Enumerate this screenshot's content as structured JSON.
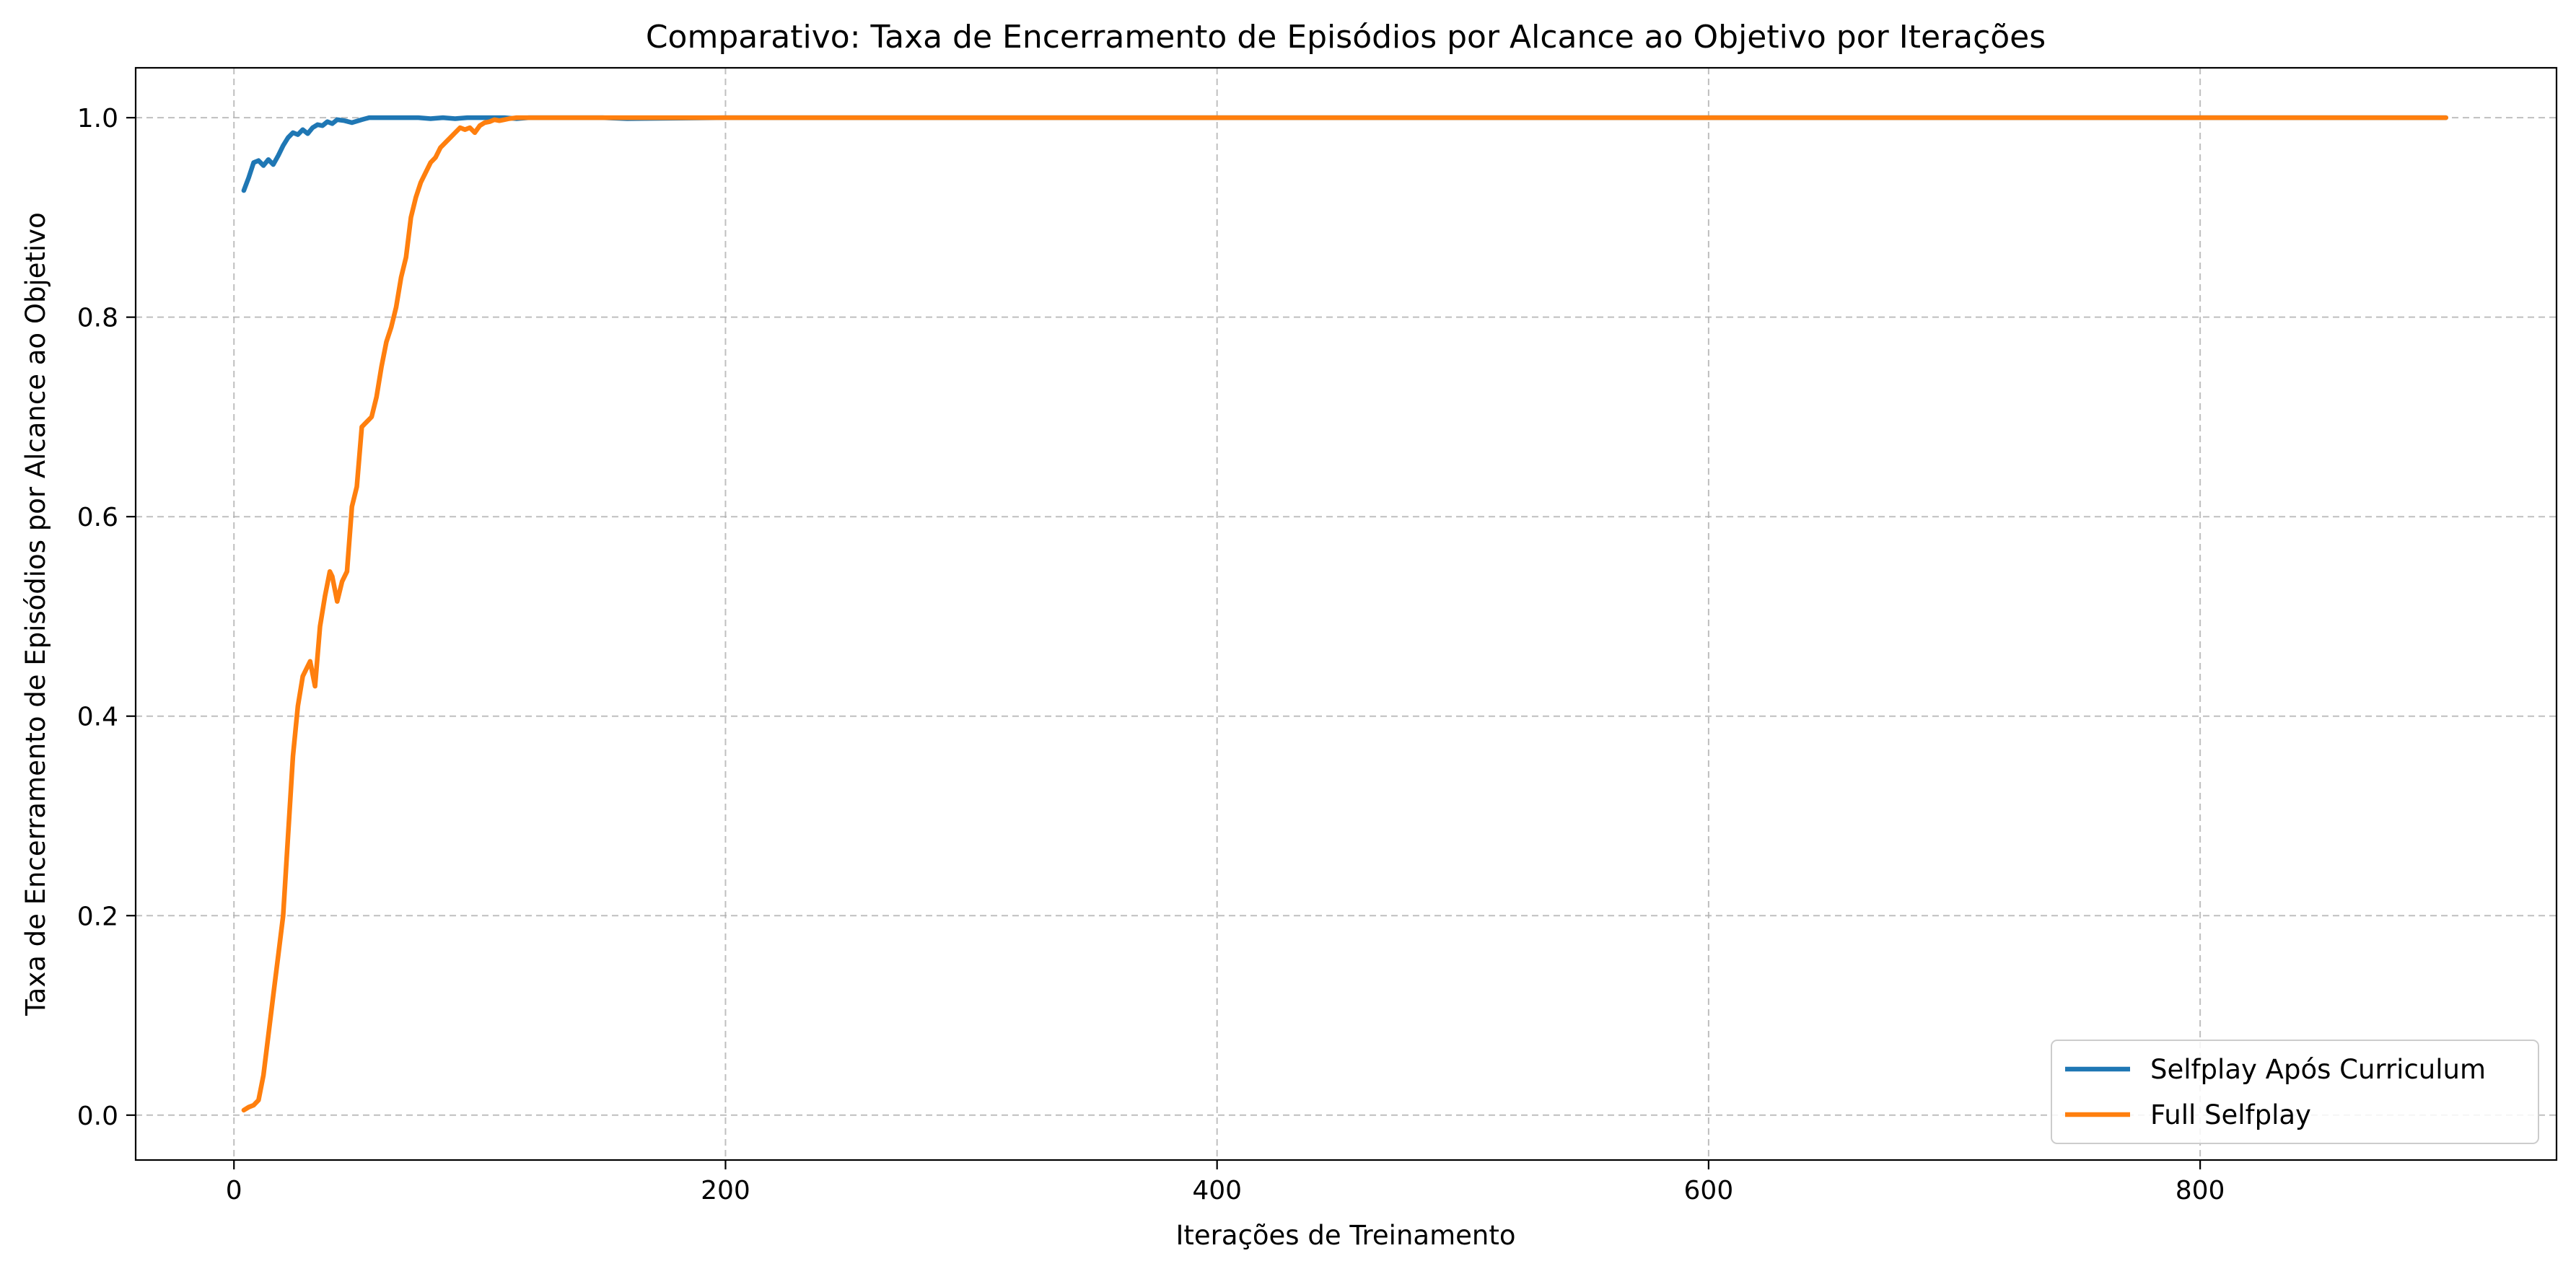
{
  "chart_data": {
    "type": "line",
    "title": "Comparativo: Taxa de Encerramento de Episódios por Alcance ao Objetivo por Iterações",
    "xlabel": "Iterações de Treinamento",
    "ylabel": "Taxa de Encerramento de Episódios por Alcance ao Objetivo",
    "xlim": [
      -40,
      945
    ],
    "ylim": [
      -0.045,
      1.05
    ],
    "xticks": [
      0,
      200,
      400,
      600,
      800
    ],
    "yticks": [
      0.0,
      0.2,
      0.4,
      0.6,
      0.8,
      1.0
    ],
    "xtick_labels": [
      "0",
      "200",
      "400",
      "600",
      "800"
    ],
    "ytick_labels": [
      "0.0",
      "0.2",
      "0.4",
      "0.6",
      "0.8",
      "1.0"
    ],
    "grid": true,
    "legend_position": "bottom-right",
    "series": [
      {
        "name": "Selfplay Após Curriculum",
        "color": "#1f77b4",
        "points": [
          [
            4,
            0.927
          ],
          [
            6,
            0.94
          ],
          [
            8,
            0.955
          ],
          [
            10,
            0.957
          ],
          [
            12,
            0.952
          ],
          [
            14,
            0.958
          ],
          [
            16,
            0.953
          ],
          [
            18,
            0.962
          ],
          [
            20,
            0.972
          ],
          [
            22,
            0.98
          ],
          [
            24,
            0.985
          ],
          [
            26,
            0.983
          ],
          [
            28,
            0.988
          ],
          [
            30,
            0.984
          ],
          [
            32,
            0.99
          ],
          [
            34,
            0.993
          ],
          [
            36,
            0.992
          ],
          [
            38,
            0.996
          ],
          [
            40,
            0.994
          ],
          [
            42,
            0.998
          ],
          [
            45,
            0.997
          ],
          [
            48,
            0.995
          ],
          [
            52,
            0.998
          ],
          [
            55,
            1.0
          ],
          [
            60,
            1.0
          ],
          [
            65,
            1.0
          ],
          [
            70,
            1.0
          ],
          [
            75,
            1.0
          ],
          [
            80,
            0.999
          ],
          [
            85,
            1.0
          ],
          [
            90,
            0.999
          ],
          [
            95,
            1.0
          ],
          [
            100,
            1.0
          ],
          [
            105,
            1.0
          ],
          [
            110,
            1.0
          ],
          [
            115,
            0.999
          ],
          [
            120,
            1.0
          ],
          [
            150,
            1.0
          ],
          [
            160,
            0.999
          ],
          [
            200,
            1.0
          ],
          [
            300,
            1.0
          ],
          [
            450,
            1.0
          ],
          [
            600,
            1.0
          ],
          [
            750,
            1.0
          ],
          [
            800,
            1.0
          ],
          [
            850,
            1.0
          ],
          [
            900,
            1.0
          ]
        ]
      },
      {
        "name": "Full Selfplay",
        "color": "#ff7f0e",
        "points": [
          [
            4,
            0.005
          ],
          [
            6,
            0.008
          ],
          [
            8,
            0.01
          ],
          [
            10,
            0.015
          ],
          [
            12,
            0.04
          ],
          [
            14,
            0.08
          ],
          [
            16,
            0.12
          ],
          [
            18,
            0.16
          ],
          [
            20,
            0.2
          ],
          [
            22,
            0.28
          ],
          [
            24,
            0.36
          ],
          [
            26,
            0.41
          ],
          [
            28,
            0.44
          ],
          [
            30,
            0.45
          ],
          [
            31,
            0.455
          ],
          [
            33,
            0.43
          ],
          [
            35,
            0.49
          ],
          [
            37,
            0.52
          ],
          [
            39,
            0.545
          ],
          [
            40,
            0.54
          ],
          [
            42,
            0.515
          ],
          [
            44,
            0.535
          ],
          [
            46,
            0.545
          ],
          [
            48,
            0.61
          ],
          [
            50,
            0.63
          ],
          [
            52,
            0.69
          ],
          [
            54,
            0.695
          ],
          [
            56,
            0.7
          ],
          [
            58,
            0.72
          ],
          [
            60,
            0.75
          ],
          [
            62,
            0.775
          ],
          [
            64,
            0.79
          ],
          [
            66,
            0.81
          ],
          [
            68,
            0.84
          ],
          [
            70,
            0.86
          ],
          [
            72,
            0.9
          ],
          [
            74,
            0.92
          ],
          [
            76,
            0.935
          ],
          [
            78,
            0.945
          ],
          [
            80,
            0.955
          ],
          [
            82,
            0.96
          ],
          [
            84,
            0.97
          ],
          [
            86,
            0.975
          ],
          [
            88,
            0.98
          ],
          [
            90,
            0.985
          ],
          [
            92,
            0.99
          ],
          [
            94,
            0.988
          ],
          [
            96,
            0.99
          ],
          [
            98,
            0.985
          ],
          [
            100,
            0.992
          ],
          [
            102,
            0.995
          ],
          [
            104,
            0.996
          ],
          [
            106,
            0.998
          ],
          [
            108,
            0.997
          ],
          [
            110,
            0.998
          ],
          [
            112,
            0.999
          ],
          [
            115,
            1.0
          ],
          [
            120,
            1.0
          ],
          [
            150,
            1.0
          ],
          [
            200,
            1.0
          ],
          [
            300,
            1.0
          ],
          [
            400,
            1.0
          ],
          [
            500,
            1.0
          ],
          [
            600,
            1.0
          ],
          [
            700,
            1.0
          ],
          [
            800,
            1.0
          ],
          [
            850,
            1.0
          ],
          [
            900,
            1.0
          ]
        ]
      }
    ]
  }
}
